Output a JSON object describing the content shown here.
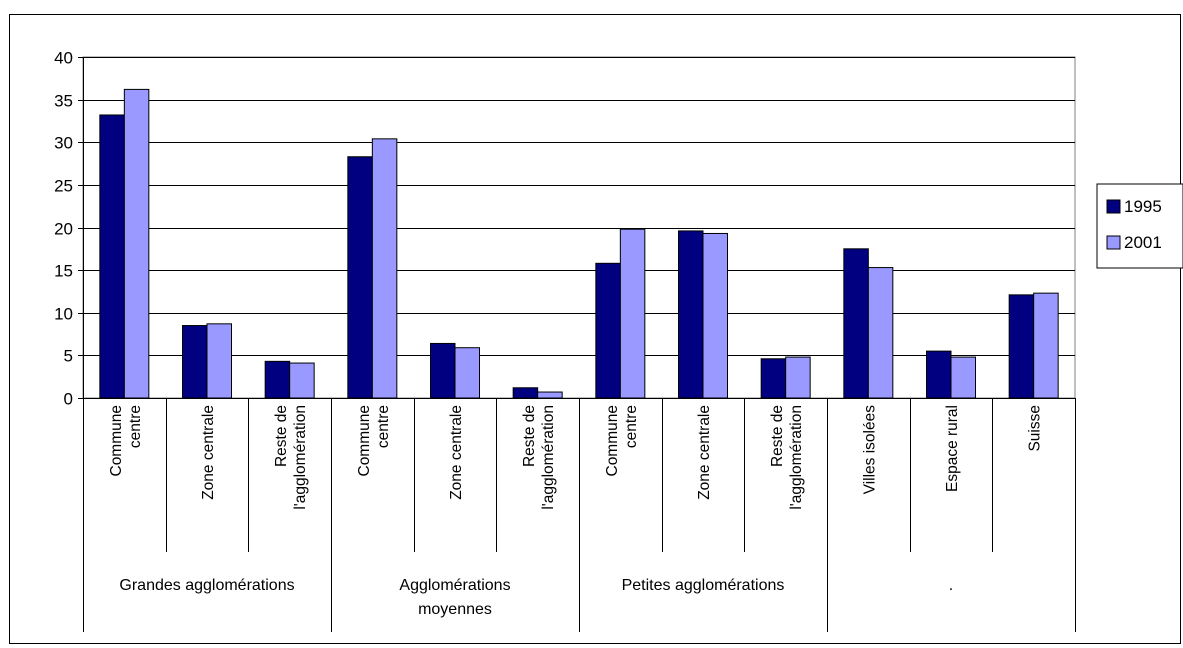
{
  "chart_data": {
    "type": "bar",
    "title": "",
    "xlabel": "",
    "ylabel": "",
    "ylim": [
      0,
      40
    ],
    "yticks": [
      0,
      5,
      10,
      15,
      20,
      25,
      30,
      35,
      40
    ],
    "grid": true,
    "legend_position": "right",
    "categories": [
      [
        "Commune",
        "centre"
      ],
      [
        "Zone centrale"
      ],
      [
        "Reste de",
        "l'agglomération"
      ],
      [
        "Commune",
        "centre"
      ],
      [
        "Zone centrale"
      ],
      [
        "Reste de",
        "l'agglomération"
      ],
      [
        "Commune",
        "centre"
      ],
      [
        "Zone centrale"
      ],
      [
        "Reste de",
        "l'agglomération"
      ],
      [
        "Villes isolées"
      ],
      [
        "Espace rural"
      ],
      [
        "Suisse"
      ]
    ],
    "groups": [
      {
        "label": [
          "Grandes agglomérations"
        ],
        "span": [
          0,
          2
        ]
      },
      {
        "label": [
          "Agglomérations",
          "moyennes"
        ],
        "span": [
          3,
          5
        ]
      },
      {
        "label": [
          "Petites agglomérations"
        ],
        "span": [
          6,
          8
        ]
      },
      {
        "label": [
          "."
        ],
        "span": [
          9,
          11
        ]
      }
    ],
    "series": [
      {
        "name": "1995",
        "color": "#000080",
        "values": [
          33.2,
          8.5,
          4.3,
          28.3,
          6.4,
          1.2,
          15.8,
          19.6,
          4.6,
          17.5,
          5.5,
          12.1
        ]
      },
      {
        "name": "2001",
        "color": "#9999ff",
        "values": [
          36.2,
          8.7,
          4.1,
          30.4,
          5.9,
          0.7,
          19.8,
          19.3,
          4.8,
          15.3,
          4.8,
          12.3
        ]
      }
    ]
  }
}
